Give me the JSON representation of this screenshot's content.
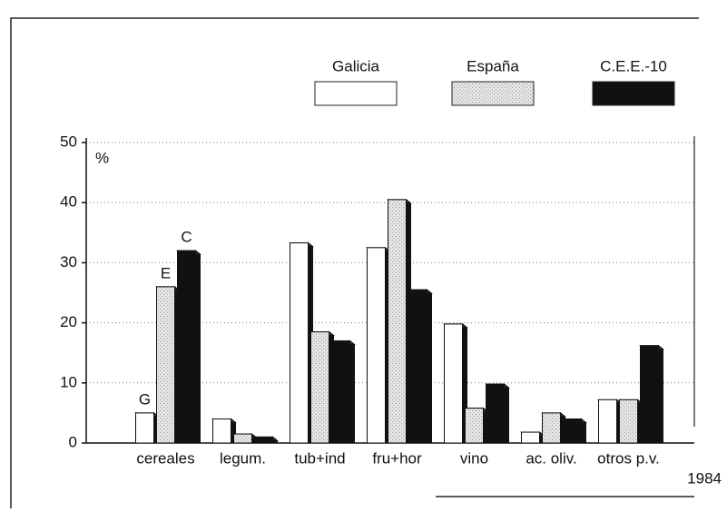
{
  "chart_data": {
    "type": "bar",
    "categories": [
      "cereales",
      "legum.",
      "tub+ind",
      "fru+hor",
      "vino",
      "ac. oliv.",
      "otros p.v."
    ],
    "series": [
      {
        "name": "Galicia",
        "color": "#ffffff",
        "values": [
          5,
          4,
          33.3,
          32.5,
          19.8,
          1.8,
          7.2
        ]
      },
      {
        "name": "España",
        "color": "#d8d8d8",
        "values": [
          26,
          1.5,
          18.5,
          40.5,
          5.8,
          5,
          7.2
        ]
      },
      {
        "name": "C.E.E.-10",
        "color": "#111111",
        "values": [
          32,
          1,
          17,
          25.5,
          9.8,
          4,
          16.2
        ]
      }
    ],
    "annotations": [
      "G",
      "E",
      "C"
    ],
    "y_label": "%",
    "note": "1984",
    "ylim": [
      0,
      50
    ],
    "yticks": [
      0,
      10,
      20,
      30,
      40,
      50
    ],
    "grid": true
  }
}
